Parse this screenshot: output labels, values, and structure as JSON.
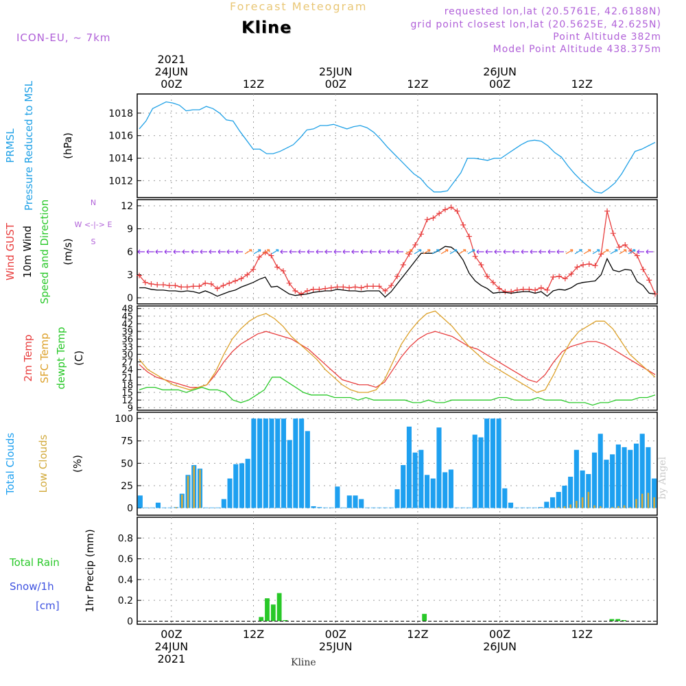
{
  "header": {
    "app_title": "Forecast Meteogram",
    "location": "Kline",
    "model": "ICON-EU, ~ 7km",
    "requested": "requested lon,lat (20.5761E, 42.6188N)",
    "closest": "grid point closest lon,lat (20.5625E, 42.625N)",
    "point_altitude": "Point Altitude 382m",
    "model_altitude": "Model Point Altitude 438.375m",
    "footer_location": "Kline",
    "watermark": "by Angel"
  },
  "time_axis": {
    "top_labels": [
      {
        "hour": 0,
        "lines": [
          "2021",
          "24JUN",
          "00Z"
        ]
      },
      {
        "hour": 12,
        "lines": [
          "12Z"
        ]
      },
      {
        "hour": 24,
        "lines": [
          "25JUN",
          "00Z"
        ]
      },
      {
        "hour": 36,
        "lines": [
          "12Z"
        ]
      },
      {
        "hour": 48,
        "lines": [
          "26JUN",
          "00Z"
        ]
      },
      {
        "hour": 60,
        "lines": [
          "12Z"
        ]
      }
    ],
    "bottom_labels": [
      {
        "hour": 0,
        "lines": [
          "00Z",
          "24JUN",
          "2021"
        ]
      },
      {
        "hour": 12,
        "lines": [
          "12Z"
        ]
      },
      {
        "hour": 24,
        "lines": [
          "00Z",
          "25JUN"
        ]
      },
      {
        "hour": 36,
        "lines": [
          "12Z"
        ]
      },
      {
        "hour": 48,
        "lines": [
          "00Z",
          "26JUN"
        ]
      },
      {
        "hour": 60,
        "lines": [
          "12Z"
        ]
      }
    ],
    "start_hour": -5,
    "end_hour": 71
  },
  "colors": {
    "pressure": "#1ea0e6",
    "gust": "#e83c3c",
    "wind10m": "#000000",
    "temp2m": "#e83c3c",
    "sfc_temp": "#dca028",
    "dewpt": "#28c828",
    "total_clouds": "#1ea0f0",
    "low_clouds": "#d2aa3c",
    "rain": "#28c828",
    "snow": "#3c50e0",
    "purple": "#b060d8"
  },
  "chart_data": [
    {
      "type": "line",
      "panel": "pressure",
      "ylabel_lines": [
        "PRMSL",
        "Pressure Reduced to MSL"
      ],
      "unit": "(hPa)",
      "ylim": [
        1010.5,
        1019.7
      ],
      "yticks": [
        1012,
        1014,
        1016,
        1018
      ],
      "grid": true,
      "series": [
        {
          "values": [
            1016.6,
            1017.3,
            1018.4,
            1018.7,
            1019.0,
            1018.9,
            1018.7,
            1018.2,
            1018.3,
            1018.3,
            1018.6,
            1018.4,
            1018.0,
            1017.4,
            1017.3,
            1016.4,
            1015.6,
            1014.8,
            1014.8,
            1014.4,
            1014.4,
            1014.6,
            1014.9,
            1015.2,
            1015.8,
            1016.5,
            1016.6,
            1016.9,
            1016.9,
            1017.0,
            1016.8,
            1016.6,
            1016.8,
            1016.9,
            1016.7,
            1016.3,
            1015.7,
            1015.0,
            1014.4,
            1013.8,
            1013.2,
            1012.6,
            1012.2,
            1011.5,
            1011.0,
            1011.0,
            1011.1,
            1011.9,
            1012.7,
            1014.0,
            1014.0,
            1013.9,
            1013.8,
            1014.0,
            1014.0,
            1014.4,
            1014.8,
            1015.2,
            1015.5,
            1015.6,
            1015.5,
            1015.1,
            1014.5,
            1014.1,
            1013.3,
            1012.6,
            1012.0,
            1011.5,
            1011.0,
            1010.9,
            1011.3,
            1011.8,
            1012.6,
            1013.6,
            1014.6,
            1014.8,
            1015.1,
            1015.4
          ]
        }
      ]
    },
    {
      "type": "line",
      "panel": "wind",
      "ylabel_lines": [
        "Wind GUST",
        "10m Wind",
        "Speed and Direction"
      ],
      "unit": "(m/s)",
      "compass": [
        "N",
        "W <-|-> E",
        "S"
      ],
      "ylim": [
        -0.8,
        12.8
      ],
      "yticks": [
        0,
        3,
        6,
        9,
        12
      ],
      "grid": true,
      "series": [
        {
          "name": "Wind GUST",
          "values": [
            2.9,
            2.0,
            1.8,
            1.7,
            1.7,
            1.6,
            1.6,
            1.4,
            1.4,
            1.5,
            1.5,
            1.9,
            1.8,
            1.2,
            1.6,
            1.9,
            2.2,
            2.5,
            3.0,
            3.7,
            5.3,
            5.9,
            5.5,
            4.0,
            3.5,
            1.9,
            0.9,
            0.5,
            0.9,
            1.1,
            1.1,
            1.2,
            1.3,
            1.4,
            1.4,
            1.3,
            1.4,
            1.3,
            1.5,
            1.5,
            1.5,
            0.9,
            1.6,
            2.8,
            4.3,
            5.7,
            6.9,
            8.3,
            10.2,
            10.4,
            11.0,
            11.5,
            11.8,
            11.3,
            9.5,
            8.0,
            5.4,
            4.3,
            2.8,
            2.0,
            1.2,
            0.8,
            0.8,
            1.0,
            1.1,
            1.1,
            1.0,
            1.3,
            1.0,
            2.7,
            2.8,
            2.5,
            3.1,
            4.0,
            4.3,
            4.4,
            4.2,
            5.7,
            11.3,
            8.4,
            6.6,
            6.9,
            6.1,
            5.5,
            3.7,
            2.3,
            0.5
          ]
        },
        {
          "name": "10m Wind",
          "values": [
            1.3,
            1.3,
            1.1,
            1.0,
            1.0,
            0.9,
            0.9,
            0.8,
            0.9,
            0.8,
            0.6,
            0.9,
            0.6,
            0.2,
            0.5,
            0.8,
            1.0,
            1.4,
            1.7,
            2.0,
            2.4,
            2.7,
            1.4,
            1.5,
            1.0,
            0.5,
            0.3,
            0.4,
            0.5,
            0.7,
            0.8,
            0.9,
            0.9,
            1.1,
            1.0,
            0.9,
            0.9,
            0.8,
            0.9,
            0.9,
            0.9,
            0.1,
            0.8,
            1.8,
            2.8,
            3.8,
            4.8,
            5.8,
            5.8,
            5.8,
            6.2,
            6.7,
            6.6,
            6.0,
            4.9,
            3.2,
            2.2,
            1.6,
            1.2,
            0.6,
            0.7,
            0.7,
            0.6,
            0.7,
            0.8,
            0.8,
            0.6,
            0.8,
            0.2,
            0.9,
            1.1,
            1.0,
            1.3,
            1.8,
            2.0,
            2.1,
            2.2,
            3.0,
            5.1,
            3.6,
            3.4,
            3.7,
            3.6,
            2.1,
            1.6,
            0.6,
            0.5
          ]
        }
      ]
    },
    {
      "type": "line",
      "panel": "temperature",
      "ylabel_lines": [
        "2m Temp",
        "SFC Temp",
        "dewpt Temp"
      ],
      "unit": "(C)",
      "ylim": [
        8,
        49
      ],
      "yticks": [
        9,
        12,
        15,
        18,
        21,
        24,
        27,
        30,
        33,
        36,
        39,
        42,
        45,
        48
      ],
      "grid": true,
      "series": [
        {
          "name": "2m Temp",
          "values": [
            26,
            23,
            21,
            20,
            19,
            18,
            17,
            17,
            18,
            22,
            27,
            31,
            34,
            36,
            38,
            39,
            38,
            37,
            36,
            34,
            32,
            29,
            26,
            23,
            20,
            19,
            18,
            18,
            17,
            19,
            24,
            29,
            33,
            36,
            38,
            39,
            38,
            37,
            35,
            33,
            32,
            30,
            28,
            26,
            24,
            22,
            20,
            19,
            22,
            27,
            31,
            33,
            34,
            35,
            35,
            34,
            32,
            30,
            28,
            26,
            24,
            22
          ]
        },
        {
          "name": "SFC Temp",
          "values": [
            28,
            24,
            22,
            20,
            18,
            17,
            16,
            17,
            18,
            23,
            30,
            36,
            40,
            43,
            45,
            46,
            44,
            41,
            37,
            34,
            31,
            28,
            24,
            21,
            18,
            16,
            15,
            15,
            16,
            20,
            27,
            34,
            39,
            43,
            46,
            47,
            44,
            41,
            37,
            33,
            30,
            27,
            25,
            23,
            21,
            19,
            17,
            15,
            16,
            22,
            29,
            35,
            39,
            41,
            43,
            43,
            40,
            35,
            30,
            27,
            24,
            21
          ]
        },
        {
          "name": "dewpt Temp",
          "values": [
            16,
            17,
            17,
            16,
            16,
            16,
            15,
            16,
            17,
            16,
            16,
            15,
            12,
            11,
            12,
            14,
            16,
            21,
            21,
            19,
            17,
            15,
            14,
            14,
            14,
            13,
            13,
            13,
            12,
            13,
            12,
            12,
            12,
            12,
            12,
            11,
            11,
            12,
            11,
            11,
            12,
            12,
            12,
            12,
            12,
            12,
            13,
            13,
            12,
            12,
            12,
            13,
            12,
            12,
            12,
            11,
            11,
            11,
            10,
            11,
            11,
            12,
            12,
            12,
            13,
            13,
            14
          ]
        }
      ]
    },
    {
      "type": "bar",
      "panel": "clouds",
      "ylabel_lines": [
        "Total Clouds",
        "Low Clouds"
      ],
      "unit": "(%)",
      "ylim": [
        -8,
        107
      ],
      "yticks": [
        0,
        25,
        50,
        75,
        100
      ],
      "grid": true,
      "series": [
        {
          "name": "Total Clouds",
          "values": [
            14,
            0,
            0,
            6,
            0,
            0,
            1,
            16,
            37,
            48,
            44,
            0,
            0,
            0,
            10,
            33,
            49,
            50,
            55,
            100,
            100,
            100,
            100,
            100,
            100,
            76,
            100,
            100,
            86,
            2,
            1,
            0,
            0,
            24,
            0,
            14,
            14,
            10,
            0,
            0,
            0,
            0,
            0,
            21,
            48,
            91,
            62,
            65,
            37,
            33,
            90,
            40,
            43,
            0,
            0,
            0,
            82,
            79,
            100,
            100,
            100,
            22,
            6,
            0,
            0,
            0,
            0,
            1,
            7,
            12,
            18,
            25,
            35,
            65,
            42,
            38,
            62,
            83,
            54,
            60,
            71,
            68,
            65,
            72,
            83,
            68,
            33
          ]
        },
        {
          "name": "Low Clouds",
          "values": [
            0,
            0,
            0,
            0,
            0,
            0,
            1,
            15,
            36,
            47,
            43,
            0,
            0,
            0,
            0,
            0,
            0,
            0,
            0,
            0,
            0,
            0,
            0,
            0,
            0,
            0,
            0,
            0,
            0,
            0,
            0,
            0,
            0,
            0,
            0,
            0,
            0,
            0,
            0,
            0,
            0,
            0,
            0,
            0,
            0,
            0,
            0,
            0,
            0,
            0,
            0,
            0,
            0,
            0,
            0,
            0,
            0,
            0,
            0,
            0,
            0,
            0,
            0,
            0,
            0,
            0,
            0,
            0,
            0,
            0,
            1,
            2,
            4,
            8,
            12,
            18,
            3,
            2,
            0,
            1,
            2,
            3,
            1,
            10,
            16,
            17,
            12
          ]
        }
      ]
    },
    {
      "type": "bar",
      "panel": "precip",
      "ylabel_lines": [
        "1hr Precip (mm)"
      ],
      "side_labels": [
        "Total  Rain",
        "Snow/1h",
        "[cm]"
      ],
      "ylim": [
        -0.03,
        1.0
      ],
      "yticks": [
        0,
        0.2,
        0.4,
        0.6,
        0.8
      ],
      "grid": true,
      "series": [
        {
          "name": "Total Rain",
          "values": [
            0,
            0,
            0,
            0,
            0,
            0,
            0,
            0,
            0,
            0,
            0,
            0,
            0,
            0,
            0,
            0,
            0,
            0,
            0,
            0,
            0.04,
            0.22,
            0.16,
            0.27,
            0.01,
            0,
            0,
            0,
            0,
            0,
            0,
            0,
            0,
            0,
            0,
            0,
            0,
            0,
            0,
            0,
            0,
            0,
            0,
            0,
            0,
            0,
            0,
            0.07,
            0,
            0,
            0,
            0,
            0,
            0,
            0,
            0,
            0,
            0,
            0,
            0,
            0,
            0,
            0,
            0,
            0,
            0,
            0,
            0,
            0,
            0,
            0,
            0,
            0,
            0,
            0,
            0,
            0,
            0,
            0.02,
            0.02,
            0.01,
            0,
            0,
            0,
            0,
            0
          ]
        }
      ]
    }
  ]
}
